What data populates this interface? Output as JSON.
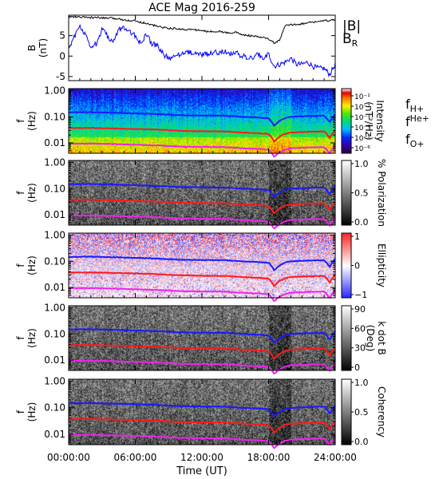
{
  "chart_data": [
    {
      "type": "line",
      "title": "ACE Mag 2016-259",
      "ylabel": "B",
      "yunit": "(nT)",
      "yticks": [
        "5",
        "0",
        "-5"
      ],
      "ylim": [
        -6,
        10
      ],
      "x_hours": [
        0,
        0.5,
        1,
        1.5,
        2,
        2.5,
        3,
        3.5,
        4,
        4.5,
        5,
        5.5,
        6,
        6.5,
        7,
        7.5,
        8,
        8.5,
        9,
        9.5,
        10,
        10.5,
        11,
        11.5,
        12,
        12.5,
        13,
        13.5,
        14,
        14.5,
        15,
        15.5,
        16,
        16.5,
        17,
        17.5,
        18,
        18.5,
        19,
        19.5,
        20,
        20.5,
        21,
        21.5,
        22,
        22.5,
        23,
        23.5,
        24
      ],
      "series": [
        {
          "name": "|B|",
          "color": "#000000",
          "values": [
            9.6,
            9.6,
            9.5,
            9.5,
            9.4,
            9.4,
            9.3,
            9.3,
            9.2,
            9.1,
            8.9,
            8.7,
            8.6,
            8.3,
            8.0,
            7.6,
            7.3,
            7.0,
            6.8,
            6.7,
            6.6,
            6.5,
            6.5,
            6.4,
            6.2,
            6.0,
            6.0,
            6.1,
            5.8,
            5.6,
            5.9,
            5.3,
            5.1,
            4.9,
            4.7,
            4.5,
            4.2,
            3.2,
            3.8,
            7.5,
            7.6,
            7.8,
            7.9,
            8.1,
            8.3,
            8.5,
            8.6,
            8.7,
            8.8
          ]
        },
        {
          "name": "B",
          "subscript": "R",
          "color": "#0000ff",
          "values": [
            2.0,
            4.5,
            7.5,
            5.0,
            2.5,
            3.0,
            6.5,
            5.0,
            3.0,
            6.5,
            6.8,
            6.0,
            5.0,
            3.0,
            5.5,
            3.0,
            2.5,
            0.5,
            -0.5,
            0.0,
            0.5,
            1.0,
            0.8,
            0.5,
            0.3,
            0.5,
            1.0,
            0.8,
            1.2,
            0.5,
            1.0,
            0.0,
            -0.2,
            -0.5,
            0.5,
            -0.5,
            0.5,
            -2.5,
            -2.0,
            -1.5,
            -0.5,
            -2.0,
            -2.0,
            -1.5,
            -2.5,
            -3.0,
            -3.0,
            -4.5,
            -2.0
          ]
        }
      ],
      "xlim_hours": [
        0,
        24
      ]
    },
    {
      "type": "heatmap",
      "ylabel": "f",
      "yunit": "(Hz)",
      "colorbar_label": "Intensity",
      "colorbar_unit": "(nT²/Hz)",
      "colorbar_ticks": [
        "10⁻¹",
        "10⁻²",
        "10⁻³",
        "10⁻⁴",
        "10⁻⁵",
        "10⁻⁶"
      ],
      "colormap": "rainbow",
      "legend": [
        {
          "base": "f",
          "sub": "H+",
          "color": "#3333cc",
          "super": false
        },
        {
          "base": "f",
          "sub": "He+",
          "color": "#cc0000",
          "super": true
        },
        {
          "base": "f",
          "sub": "O+",
          "color": "#ee00ee",
          "super": false
        }
      ]
    },
    {
      "type": "heatmap",
      "ylabel": "f",
      "yunit": "(Hz)",
      "colorbar_label": "% Polarization",
      "colorbar_ticks": [
        "1.0",
        "0.5",
        "0.0"
      ],
      "colormap": "gray"
    },
    {
      "type": "heatmap",
      "ylabel": "f",
      "yunit": "(Hz)",
      "colorbar_label": "Ellipticity",
      "colorbar_ticks": [
        "1",
        "0",
        "−1"
      ],
      "colormap": "bwr"
    },
    {
      "type": "heatmap",
      "ylabel": "f",
      "yunit": "(Hz)",
      "colorbar_label": "k dot B",
      "colorbar_unit": "(Deg)",
      "colorbar_ticks": [
        "90",
        "60",
        "30",
        "0"
      ],
      "colormap": "gray"
    },
    {
      "type": "heatmap",
      "ylabel": "f",
      "yunit": "(Hz)",
      "colorbar_label": "Coherency",
      "colorbar_ticks": [
        "1.0",
        "0.5",
        "0.0"
      ],
      "colormap": "gray"
    }
  ],
  "spectrogram_axis": {
    "yticks": [
      "1.00",
      "0.10",
      "0.01"
    ],
    "ylim_hz": [
      0.004,
      1.2
    ],
    "cyclotron_hz_hourly": {
      "x_hours": [
        0,
        2,
        4,
        6,
        8,
        10,
        12,
        14,
        16,
        17,
        18,
        18.5,
        19,
        19.5,
        20,
        21,
        22,
        23,
        23.5,
        24
      ],
      "H+": [
        0.148,
        0.15,
        0.143,
        0.135,
        0.127,
        0.115,
        0.112,
        0.11,
        0.098,
        0.094,
        0.088,
        0.045,
        0.07,
        0.09,
        0.1,
        0.104,
        0.108,
        0.11,
        0.06,
        0.125
      ],
      "He+": [
        0.037,
        0.0375,
        0.036,
        0.034,
        0.032,
        0.029,
        0.028,
        0.0275,
        0.0245,
        0.0235,
        0.022,
        0.011,
        0.0175,
        0.0225,
        0.025,
        0.026,
        0.027,
        0.0275,
        0.015,
        0.031
      ],
      "O+": [
        0.0093,
        0.0094,
        0.009,
        0.0085,
        0.008,
        0.0072,
        0.007,
        0.0069,
        0.0061,
        0.0059,
        0.0055,
        0.0029,
        0.0044,
        0.0056,
        0.0063,
        0.0065,
        0.0068,
        0.0069,
        0.0038,
        0.0078
      ]
    },
    "line_colors": {
      "H+": "#1a1aff",
      "He+": "#ff1a1a",
      "O+": "#ee22ee"
    }
  },
  "x_axis": {
    "label": "Time (UT)",
    "ticks": [
      "00:00:00",
      "06:00:00",
      "12:00:00",
      "18:00:00",
      "24:00:00"
    ],
    "tick_hours": [
      0,
      6,
      12,
      18,
      24
    ]
  }
}
